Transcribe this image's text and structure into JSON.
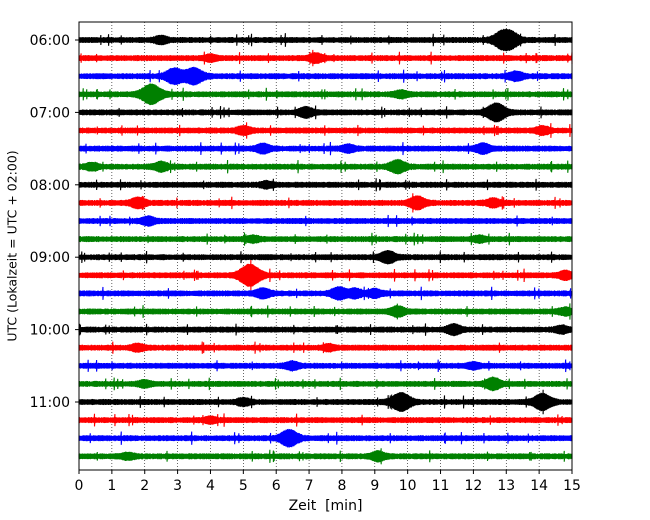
{
  "chart_data": {
    "type": "line",
    "title": "",
    "xlabel": "Zeit  [min]",
    "ylabel": "UTC (Lokalzeit = UTC + 02:00)",
    "xlim": [
      0,
      15
    ],
    "x_ticks": [
      "0",
      "1",
      "2",
      "3",
      "4",
      "5",
      "6",
      "7",
      "8",
      "9",
      "10",
      "11",
      "12",
      "13",
      "14",
      "15"
    ],
    "y_tick_labels": [
      "06:00",
      "07:00",
      "08:00",
      "09:00",
      "10:00",
      "11:00"
    ],
    "grid_x": true,
    "grid_style": "dotted",
    "trace_interval_min": 15,
    "colors_cycle": [
      "#000000",
      "#ff0000",
      "#0000ff",
      "#008000"
    ],
    "traces": [
      {
        "start": "06:00",
        "color": "#000000",
        "events": [
          {
            "t": 2.5,
            "amp": 0.6
          },
          {
            "t": 12.9,
            "amp": 1.8
          },
          {
            "t": 13.2,
            "amp": 1.0
          }
        ]
      },
      {
        "start": "06:15",
        "color": "#ff0000",
        "events": [
          {
            "t": 7.2,
            "amp": 0.8
          },
          {
            "t": 4.0,
            "amp": 0.5
          }
        ]
      },
      {
        "start": "06:30",
        "color": "#0000ff",
        "events": [
          {
            "t": 2.9,
            "amp": 1.5
          },
          {
            "t": 3.5,
            "amp": 1.6
          },
          {
            "t": 13.3,
            "amp": 0.8
          }
        ]
      },
      {
        "start": "06:45",
        "color": "#008000",
        "events": [
          {
            "t": 2.2,
            "amp": 2.0
          },
          {
            "t": 9.8,
            "amp": 0.6
          }
        ]
      },
      {
        "start": "07:00",
        "color": "#000000",
        "events": [
          {
            "t": 6.9,
            "amp": 0.9
          },
          {
            "t": 12.7,
            "amp": 1.8
          }
        ]
      },
      {
        "start": "07:15",
        "color": "#ff0000",
        "events": [
          {
            "t": 2.0,
            "amp": 0.0
          },
          {
            "t": 5.0,
            "amp": 0.7
          },
          {
            "t": 14.1,
            "amp": 0.7
          }
        ]
      },
      {
        "start": "07:30",
        "color": "#0000ff",
        "events": [
          {
            "t": 5.6,
            "amp": 0.8
          },
          {
            "t": 12.3,
            "amp": 0.9
          },
          {
            "t": 8.2,
            "amp": 0.6
          }
        ]
      },
      {
        "start": "07:45",
        "color": "#008000",
        "events": [
          {
            "t": 9.7,
            "amp": 1.2
          },
          {
            "t": 2.5,
            "amp": 0.8
          },
          {
            "t": 0.4,
            "amp": 0.6
          }
        ]
      },
      {
        "start": "08:00",
        "color": "#000000",
        "events": [
          {
            "t": 5.7,
            "amp": 0.5
          }
        ]
      },
      {
        "start": "08:15",
        "color": "#ff0000",
        "events": [
          {
            "t": 1.8,
            "amp": 0.9
          },
          {
            "t": 10.3,
            "amp": 1.2
          },
          {
            "t": 12.6,
            "amp": 0.7
          }
        ]
      },
      {
        "start": "08:30",
        "color": "#0000ff",
        "events": [
          {
            "t": 2.1,
            "amp": 0.7
          }
        ]
      },
      {
        "start": "08:45",
        "color": "#008000",
        "events": [
          {
            "t": 5.3,
            "amp": 0.5
          },
          {
            "t": 12.2,
            "amp": 0.5
          }
        ]
      },
      {
        "start": "09:00",
        "color": "#000000",
        "events": [
          {
            "t": 9.4,
            "amp": 1.1
          }
        ]
      },
      {
        "start": "09:15",
        "color": "#ff0000",
        "events": [
          {
            "t": 5.2,
            "amp": 2.2
          },
          {
            "t": 14.8,
            "amp": 0.7
          }
        ]
      },
      {
        "start": "09:30",
        "color": "#0000ff",
        "events": [
          {
            "t": 5.6,
            "amp": 0.9
          },
          {
            "t": 7.9,
            "amp": 1.1
          },
          {
            "t": 8.4,
            "amp": 0.8
          },
          {
            "t": 9.0,
            "amp": 0.7
          }
        ]
      },
      {
        "start": "09:45",
        "color": "#008000",
        "events": [
          {
            "t": 9.7,
            "amp": 0.9
          },
          {
            "t": 14.8,
            "amp": 0.6
          }
        ]
      },
      {
        "start": "10:00",
        "color": "#000000",
        "events": [
          {
            "t": 11.4,
            "amp": 0.9
          },
          {
            "t": 14.7,
            "amp": 0.6
          }
        ]
      },
      {
        "start": "10:15",
        "color": "#ff0000",
        "events": [
          {
            "t": 1.8,
            "amp": 0.6
          },
          {
            "t": 7.6,
            "amp": 0.5
          }
        ]
      },
      {
        "start": "10:30",
        "color": "#0000ff",
        "events": [
          {
            "t": 6.5,
            "amp": 0.7
          },
          {
            "t": 12.0,
            "amp": 0.5
          }
        ]
      },
      {
        "start": "10:45",
        "color": "#008000",
        "events": [
          {
            "t": 12.6,
            "amp": 1.1
          },
          {
            "t": 2.0,
            "amp": 0.5
          }
        ]
      },
      {
        "start": "11:00",
        "color": "#000000",
        "events": [
          {
            "t": 9.8,
            "amp": 1.8
          },
          {
            "t": 14.1,
            "amp": 1.6
          },
          {
            "t": 5.0,
            "amp": 0.6
          }
        ]
      },
      {
        "start": "11:15",
        "color": "#ff0000",
        "events": [
          {
            "t": 4.0,
            "amp": 0.5
          }
        ]
      },
      {
        "start": "11:30",
        "color": "#0000ff",
        "events": [
          {
            "t": 6.4,
            "amp": 1.6
          }
        ]
      },
      {
        "start": "11:45",
        "color": "#008000",
        "events": [
          {
            "t": 9.1,
            "amp": 0.8
          },
          {
            "t": 1.5,
            "amp": 0.5
          }
        ]
      }
    ]
  }
}
